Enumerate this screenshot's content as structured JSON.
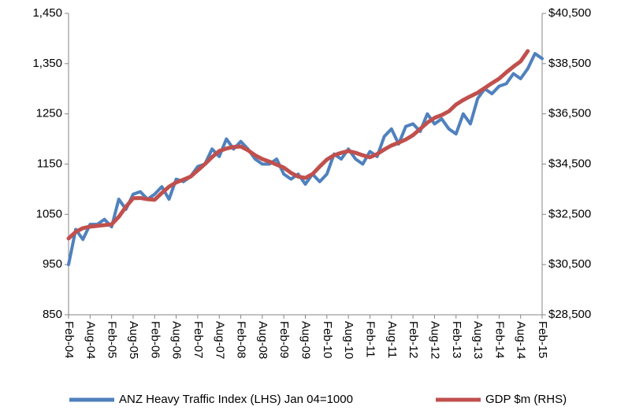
{
  "chart_data": {
    "type": "line",
    "categories": [
      "Feb-04",
      null,
      null,
      "Aug-04",
      null,
      null,
      "Feb-05",
      null,
      null,
      "Aug-05",
      null,
      null,
      "Feb-06",
      null,
      null,
      "Aug-06",
      null,
      null,
      "Feb-07",
      null,
      null,
      "Aug-07",
      null,
      null,
      "Feb-08",
      null,
      null,
      "Aug-08",
      null,
      null,
      "Feb-09",
      null,
      null,
      "Aug-09",
      null,
      null,
      "Feb-10",
      null,
      null,
      "Aug-10",
      null,
      null,
      "Feb-11",
      null,
      null,
      "Aug-11",
      null,
      null,
      "Feb-12",
      null,
      null,
      "Aug-12",
      null,
      null,
      "Feb-13",
      null,
      null,
      "Aug-13",
      null,
      null,
      "Feb-14",
      null,
      null,
      "Aug-14",
      null,
      null,
      "Feb-15"
    ],
    "series": [
      {
        "name": "ANZ Heavy Traffic Index (LHS) Jan 04=1000",
        "color": "#4f81bd",
        "axis": "y",
        "values": [
          950,
          1020,
          1000,
          1030,
          1030,
          1040,
          1025,
          1080,
          1060,
          1090,
          1095,
          1080,
          1090,
          1105,
          1080,
          1120,
          1115,
          1125,
          1145,
          1150,
          1180,
          1165,
          1200,
          1180,
          1195,
          1180,
          1160,
          1150,
          1150,
          1160,
          1130,
          1120,
          1130,
          1110,
          1130,
          1115,
          1130,
          1170,
          1160,
          1180,
          1160,
          1150,
          1175,
          1165,
          1205,
          1220,
          1190,
          1225,
          1230,
          1215,
          1250,
          1230,
          1240,
          1220,
          1210,
          1250,
          1230,
          1280,
          1300,
          1290,
          1305,
          1310,
          1330,
          1320,
          1340,
          1370,
          1360
        ]
      },
      {
        "name": "GDP $m (RHS)",
        "color": "#c0504d",
        "axis": "y2",
        "values": [
          31540,
          31800,
          31950,
          32010,
          32040,
          32070,
          32100,
          32400,
          32800,
          33140,
          33150,
          33100,
          33080,
          33350,
          33600,
          33770,
          33880,
          34000,
          34250,
          34500,
          34780,
          35020,
          35120,
          35180,
          35200,
          35050,
          34850,
          34700,
          34600,
          34480,
          34360,
          34150,
          34000,
          33950,
          34100,
          34400,
          34680,
          34850,
          34950,
          35020,
          34950,
          34850,
          34770,
          34900,
          35080,
          35240,
          35350,
          35480,
          35650,
          35900,
          36150,
          36340,
          36450,
          36600,
          36870,
          37050,
          37200,
          37340,
          37530,
          37720,
          37900,
          38150,
          38380,
          38590,
          39000,
          null,
          null
        ]
      }
    ],
    "ylim": [
      850,
      1450
    ],
    "yticks": [
      850,
      950,
      1050,
      1150,
      1250,
      {
        "value": 1350,
        "label": "1,350"
      },
      {
        "value": 1450,
        "label": "1,450"
      }
    ],
    "y2lim": [
      28500,
      40500
    ],
    "y2ticks": [
      {
        "value": 28500,
        "label": "$28,500"
      },
      {
        "value": 30500,
        "label": "$30,500"
      },
      {
        "value": 32500,
        "label": "$32,500"
      },
      {
        "value": 34500,
        "label": "$34,500"
      },
      {
        "value": 36500,
        "label": "$36,500"
      },
      {
        "value": 38500,
        "label": "$38,500"
      },
      {
        "value": 40500,
        "label": "$40,500"
      }
    ],
    "grid": false,
    "legend": "bottom"
  }
}
